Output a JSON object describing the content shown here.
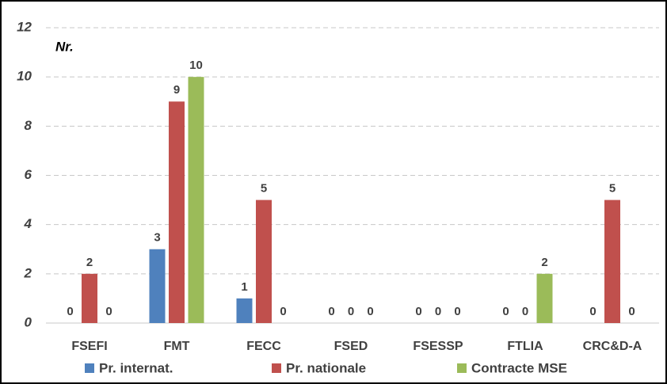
{
  "chart_data": {
    "type": "bar",
    "y_label": "Nr.",
    "categories": [
      "FSEFI",
      "FMT",
      "FECC",
      "FSED",
      "FSESSP",
      "FTLIA",
      "CRC&D-A"
    ],
    "series": [
      {
        "name": "Pr. internat.",
        "color": "#4f81bd",
        "values": [
          0,
          3,
          1,
          0,
          0,
          0,
          0
        ]
      },
      {
        "name": "Pr. nationale",
        "color": "#c0504d",
        "values": [
          2,
          9,
          5,
          0,
          0,
          0,
          5
        ]
      },
      {
        "name": "Contracte MSE",
        "color": "#9bbb59",
        "values": [
          0,
          10,
          0,
          0,
          0,
          2,
          0
        ]
      }
    ],
    "ylim": [
      0,
      12
    ],
    "yticks": [
      0,
      2,
      4,
      6,
      8,
      10,
      12
    ],
    "grid": true,
    "legend": "bottom"
  }
}
